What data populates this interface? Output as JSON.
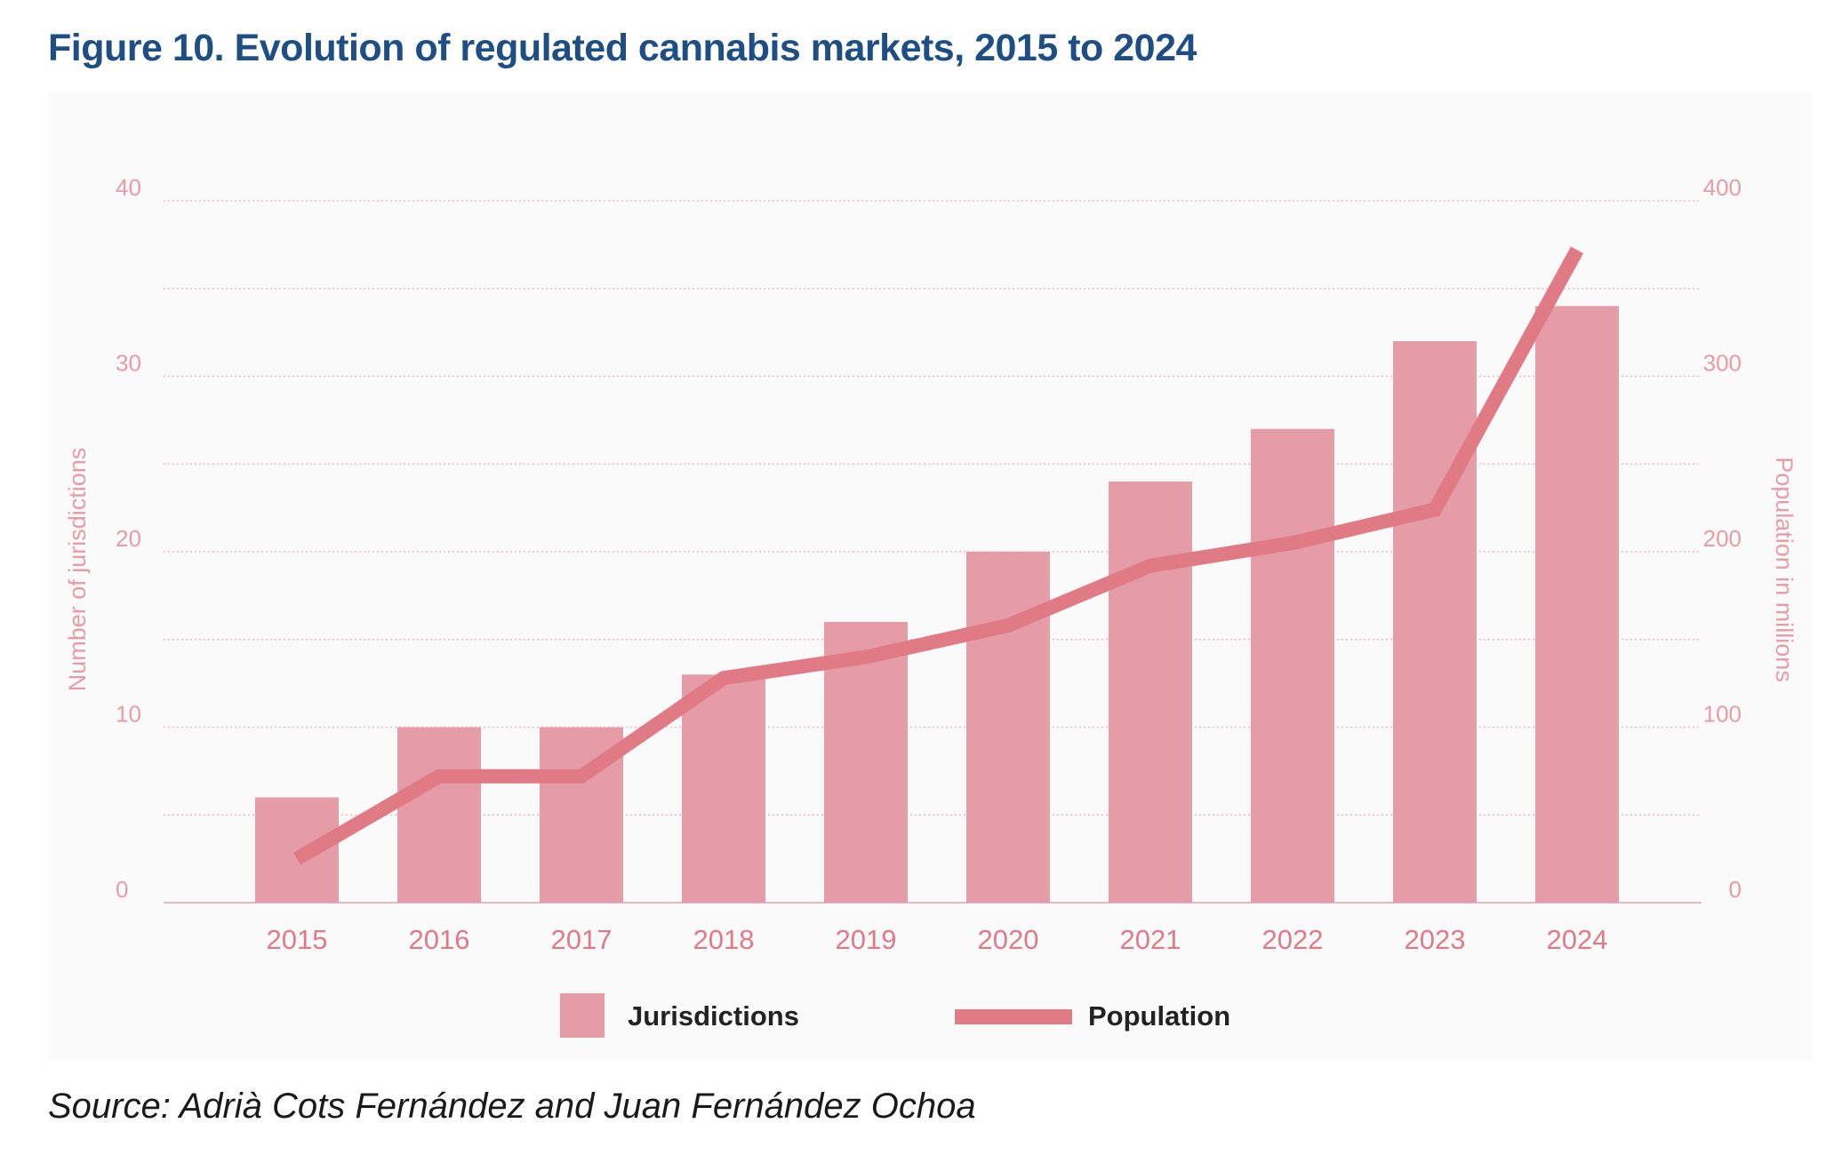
{
  "figure": {
    "number": "Figure 10.",
    "title": "Evolution of regulated cannabis markets, 2015 to 2024",
    "source": "Source: Adrià Cots Fernández and Juan Fernández Ochoa"
  },
  "colors": {
    "title": "#1f4e84",
    "bar": "#e59ca6",
    "line": "#e07b86",
    "axis_text": "#e79ca6",
    "tick_text": "#df7a86",
    "grid": "#e9b7be",
    "panel": "#fafafa",
    "legend_text": "#222222"
  },
  "chart_data": {
    "type": "bar",
    "title": "Evolution of regulated cannabis markets, 2015 to 2024",
    "categories": [
      "2015",
      "2016",
      "2017",
      "2018",
      "2019",
      "2020",
      "2021",
      "2022",
      "2023",
      "2024"
    ],
    "series": [
      {
        "name": "Jurisdictions",
        "type": "bar",
        "axis": "left",
        "values": [
          6,
          10,
          10,
          13,
          16,
          20,
          24,
          27,
          32,
          34
        ]
      },
      {
        "name": "Population",
        "type": "line",
        "axis": "right",
        "values": [
          25,
          72,
          72,
          128,
          140,
          158,
          192,
          205,
          224,
          372
        ]
      }
    ],
    "y_left": {
      "label": "Number of jurisdictions",
      "range": [
        0,
        40
      ],
      "ticks": [
        "0",
        "10",
        "20",
        "30",
        "40"
      ]
    },
    "y_right": {
      "label": "Population in millions",
      "range": [
        0,
        400
      ],
      "ticks": [
        "0",
        "100",
        "200",
        "300",
        "400"
      ]
    },
    "grid": true,
    "legend": {
      "position": "bottom",
      "items": [
        "Jurisdictions",
        "Population"
      ]
    }
  }
}
